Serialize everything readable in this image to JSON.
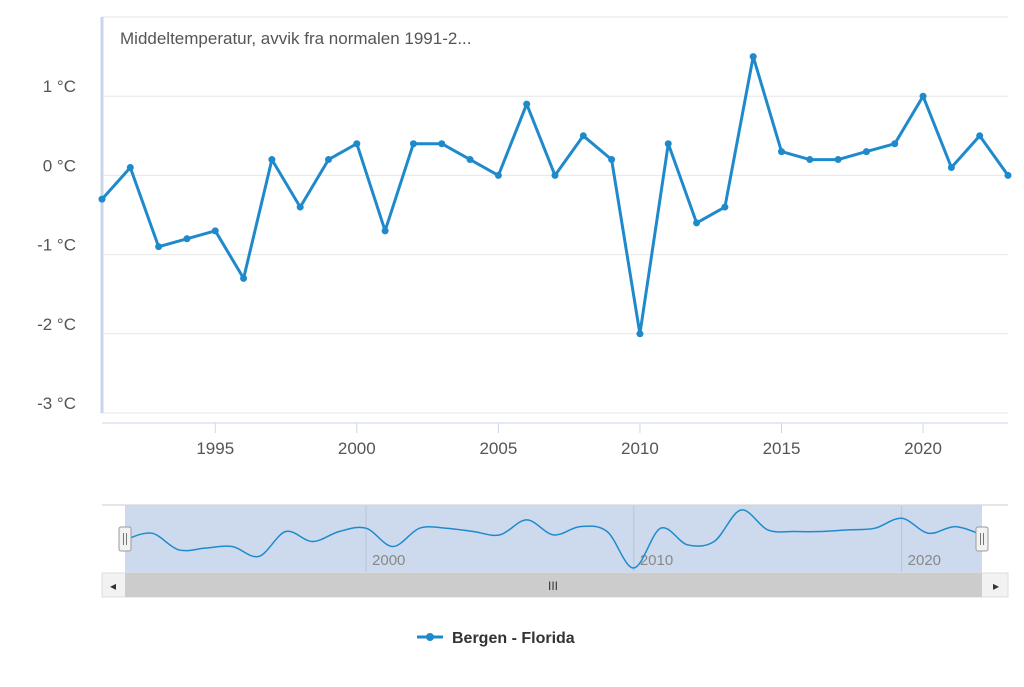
{
  "chart_data": {
    "type": "line",
    "title": "Middeltemperatur, avvik fra normalen 1991-2...",
    "x": [
      1991,
      1992,
      1993,
      1994,
      1995,
      1996,
      1997,
      1998,
      1999,
      2000,
      2001,
      2002,
      2003,
      2004,
      2005,
      2006,
      2007,
      2008,
      2009,
      2010,
      2011,
      2012,
      2013,
      2014,
      2015,
      2016,
      2017,
      2018,
      2019,
      2020,
      2021,
      2022,
      2023
    ],
    "series": [
      {
        "name": "Bergen - Florida",
        "values": [
          -0.3,
          0.1,
          -0.9,
          -0.8,
          -0.7,
          -1.3,
          0.2,
          -0.4,
          0.2,
          0.4,
          -0.7,
          0.4,
          0.4,
          0.2,
          0.0,
          0.9,
          0.0,
          0.5,
          0.2,
          -2.0,
          0.4,
          -0.6,
          -0.4,
          1.5,
          0.3,
          0.2,
          0.2,
          0.3,
          0.4,
          1.0,
          0.1,
          0.5,
          0.0
        ],
        "color": "#1f8acb"
      }
    ],
    "xlim": [
      1991,
      2023
    ],
    "ylim": [
      -3,
      2
    ],
    "y_ticks": [
      1,
      0,
      -1,
      -2,
      -3
    ],
    "y_tick_labels": [
      "1 °C",
      "0 °C",
      "-1 °C",
      "-2 °C",
      "-3 °C"
    ],
    "x_ticks": [
      1995,
      2000,
      2005,
      2010,
      2015,
      2020
    ],
    "x_tick_labels": [
      "1995",
      "2000",
      "2005",
      "2010",
      "2015",
      "2020"
    ],
    "navigator_ticks": [
      2000,
      2010,
      2020
    ],
    "navigator_tick_labels": [
      "2000",
      "2010",
      "2020"
    ],
    "grid": true,
    "legend": "bottom-center"
  },
  "navigator": {
    "scrollbar_grip": "III",
    "left_arrow": "◂",
    "right_arrow": "▸",
    "handle_grip": "||"
  },
  "colors": {
    "series": "#1f8acb",
    "grid": "#e6e6e6",
    "navigator_mask": "#c8d6ec",
    "scrollbar_track": "#f2f2f2",
    "scrollbar_thumb": "#cccccc"
  }
}
